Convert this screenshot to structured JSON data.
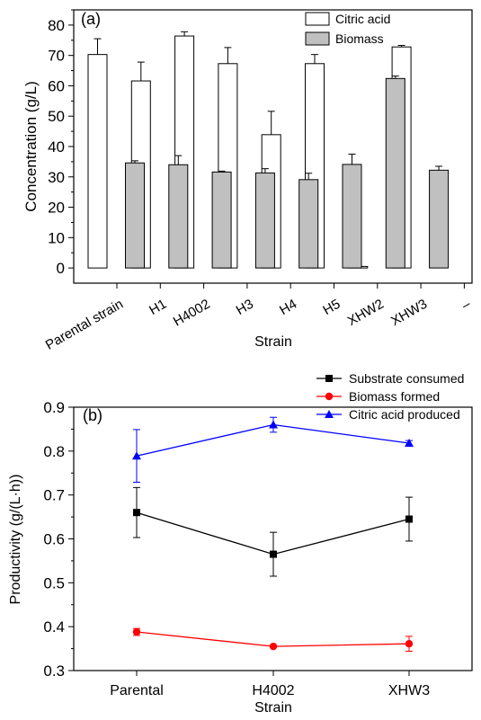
{
  "chart_data": [
    {
      "panel_label": "(a)",
      "type": "bar",
      "xlabel": "Strain",
      "ylabel": "Concentration (g/L)",
      "ylim": [
        -5,
        85
      ],
      "yticks": [
        0,
        10,
        20,
        30,
        40,
        50,
        60,
        70,
        80
      ],
      "categories": [
        "Parental strain",
        "H1",
        "H4002",
        "H3",
        "H4",
        "H5",
        "XHW2",
        "XHW3",
        "–"
      ],
      "legend_position": "top-right",
      "series": [
        {
          "name": "Citric acid",
          "color": "#ffffff",
          "values": [
            70.3,
            61.6,
            76.4,
            67.3,
            43.9,
            67.3,
            0.5,
            72.8,
            null
          ],
          "errors": [
            5.2,
            6.2,
            1.4,
            5.3,
            7.7,
            3.0,
            0.0,
            0.5,
            null
          ]
        },
        {
          "name": "Biomass",
          "color": "#c0c0c0",
          "values": [
            34.6,
            34.0,
            31.6,
            31.3,
            29.1,
            34.1,
            62.4,
            32.2,
            null
          ],
          "errors": [
            0.7,
            3.0,
            0.3,
            1.4,
            2.1,
            3.4,
            0.8,
            1.3,
            null
          ]
        }
      ]
    },
    {
      "panel_label": "(b)",
      "type": "line",
      "xlabel": "Strain",
      "ylabel": "Productivity (g/(L·h))",
      "ylim": [
        0.3,
        0.9
      ],
      "yticks": [
        "0.3",
        "0.4",
        "0.5",
        "0.6",
        "0.7",
        "0.8",
        "0.9"
      ],
      "categories": [
        "Parental",
        "H4002",
        "XHW3"
      ],
      "legend_position": "top-right (outside)",
      "series": [
        {
          "name": "Substrate consumed",
          "color": "#000000",
          "marker": "square",
          "values": [
            0.66,
            0.565,
            0.645
          ],
          "errors": [
            0.057,
            0.05,
            0.05
          ]
        },
        {
          "name": "Biomass formed",
          "color": "#ff0000",
          "marker": "circle",
          "values": [
            0.388,
            0.355,
            0.361
          ],
          "errors": [
            0.008,
            0.0,
            0.017
          ]
        },
        {
          "name": "Citric acid produced",
          "color": "#0000ff",
          "marker": "triangle",
          "values": [
            0.789,
            0.86,
            0.818
          ],
          "errors": [
            0.06,
            0.017,
            0.006
          ]
        }
      ]
    }
  ]
}
